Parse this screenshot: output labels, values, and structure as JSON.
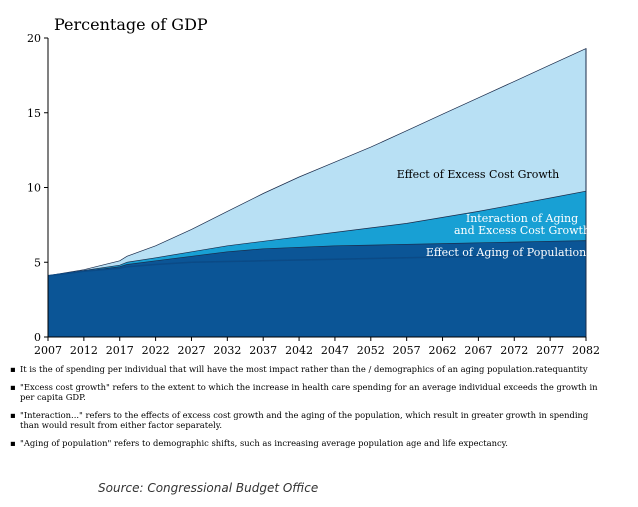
{
  "chart_data": {
    "type": "area",
    "title": "Percentage of GDP",
    "x": [
      2007,
      2012,
      2017,
      2018,
      2022,
      2027,
      2032,
      2037,
      2042,
      2047,
      2052,
      2057,
      2062,
      2067,
      2072,
      2077,
      2082
    ],
    "xticks": [
      2007,
      2012,
      2017,
      2022,
      2027,
      2032,
      2037,
      2042,
      2047,
      2052,
      2057,
      2062,
      2067,
      2072,
      2077,
      2082
    ],
    "yticks": [
      0,
      5,
      10,
      15,
      20
    ],
    "xlim": [
      2007,
      2082
    ],
    "ylim": [
      0,
      20
    ],
    "series": [
      {
        "name": "Effect of Aging of Population",
        "color": "#0b5596",
        "values": [
          4.1,
          4.4,
          4.7,
          4.85,
          5.1,
          5.4,
          5.7,
          5.9,
          6.0,
          6.1,
          6.15,
          6.2,
          6.25,
          6.3,
          6.35,
          6.4,
          6.45
        ]
      },
      {
        "name": "Interaction of Aging and Excess Cost Growth",
        "color": "#18a0d4",
        "values": [
          4.1,
          4.45,
          4.8,
          5.0,
          5.3,
          5.7,
          6.1,
          6.4,
          6.7,
          7.0,
          7.3,
          7.6,
          8.0,
          8.4,
          8.85,
          9.3,
          9.75
        ]
      },
      {
        "name": "Effect of Excess Cost Growth",
        "color": "#b8e0f4",
        "values": [
          4.1,
          4.5,
          5.1,
          5.4,
          6.1,
          7.2,
          8.4,
          9.6,
          10.7,
          11.7,
          12.7,
          13.8,
          14.9,
          16.0,
          17.1,
          18.2,
          19.3
        ]
      }
    ],
    "baseline": {
      "values": [
        4.1,
        4.4,
        4.6,
        4.7,
        4.85,
        5.0,
        5.05,
        5.1,
        5.15,
        5.2,
        5.25,
        5.3,
        5.35,
        5.4,
        5.45,
        5.5,
        5.55
      ],
      "color": "#0b4a86"
    },
    "labels": {
      "excess": "Effect of Excess Cost Growth",
      "interaction_line1": "Interaction of Aging",
      "interaction_line2": "and Excess Cost Growth",
      "aging": "Effect of Aging of Population"
    },
    "grid": false
  },
  "notes": [
    {
      "bullet": "▪",
      "text": "It is the  of spending per individual that will have the most impact rather than the  / demographics of an aging population.ratequantity"
    },
    {
      "bullet": "▪",
      "text": "\"Excess cost growth\" refers to the extent to which the increase in health care  spending for an average individual exceeds the growth in per capita GDP."
    },
    {
      "bullet": "▪",
      "text": "\"Interaction...\" refers to the effects of excess cost growth and the aging of the population, which result in greater growth in spending than would result from either factor separately."
    },
    {
      "bullet": "▪",
      "text": "\"Aging of population\" refers to demographic shifts, such as increasing average population age and life expectancy."
    }
  ],
  "source": "Source: Congressional Budget Office"
}
